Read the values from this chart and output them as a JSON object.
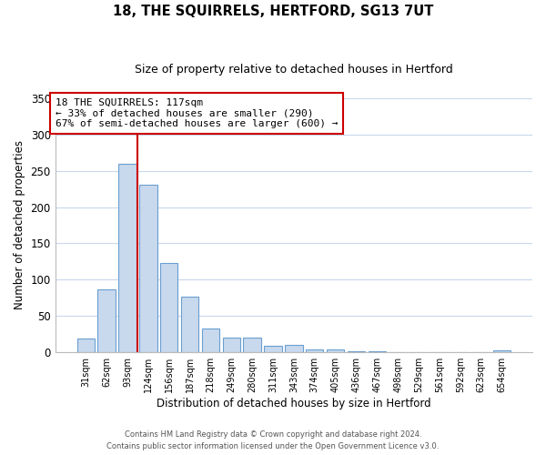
{
  "title": "18, THE SQUIRRELS, HERTFORD, SG13 7UT",
  "subtitle": "Size of property relative to detached houses in Hertford",
  "xlabel": "Distribution of detached houses by size in Hertford",
  "ylabel": "Number of detached properties",
  "bar_labels": [
    "31sqm",
    "62sqm",
    "93sqm",
    "124sqm",
    "156sqm",
    "187sqm",
    "218sqm",
    "249sqm",
    "280sqm",
    "311sqm",
    "343sqm",
    "374sqm",
    "405sqm",
    "436sqm",
    "467sqm",
    "498sqm",
    "529sqm",
    "561sqm",
    "592sqm",
    "623sqm",
    "654sqm"
  ],
  "bar_values": [
    19,
    87,
    260,
    231,
    123,
    77,
    33,
    20,
    20,
    9,
    10,
    4,
    4,
    1,
    1,
    0,
    0,
    0,
    0,
    0,
    3
  ],
  "bar_color": "#c8d9ee",
  "bar_edge_color": "#6a9fd0",
  "vline_color": "#cc0000",
  "ylim": [
    0,
    350
  ],
  "yticks": [
    0,
    50,
    100,
    150,
    200,
    250,
    300,
    350
  ],
  "annotation_line1": "18 THE SQUIRRELS: 117sqm",
  "annotation_line2": "← 33% of detached houses are smaller (290)",
  "annotation_line3": "67% of semi-detached houses are larger (600) →",
  "annotation_box_facecolor": "#ffffff",
  "annotation_box_edgecolor": "#cc0000",
  "footer_line1": "Contains HM Land Registry data © Crown copyright and database right 2024.",
  "footer_line2": "Contains public sector information licensed under the Open Government Licence v3.0.",
  "background_color": "#ffffff",
  "grid_color": "#c8d8ec"
}
